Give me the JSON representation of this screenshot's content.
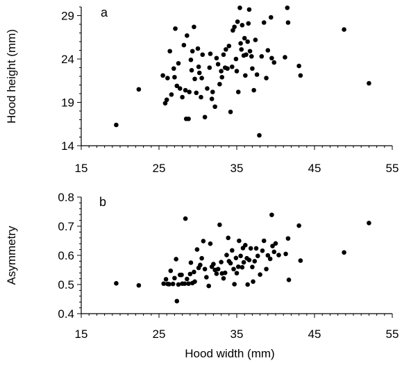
{
  "chart_data": [
    {
      "type": "scatter",
      "panel_label": "a",
      "ylabel": "Hood height (mm)",
      "xlabel": "",
      "xlim": [
        15,
        55
      ],
      "ylim": [
        14,
        30
      ],
      "xticks": [
        15,
        25,
        35,
        45,
        55
      ],
      "yticks": [
        14,
        19,
        24,
        29
      ],
      "marker_color": "#000000",
      "points": [
        [
          19.5,
          16.4
        ],
        [
          22.4,
          20.5
        ],
        [
          25.5,
          22.1
        ],
        [
          25.8,
          18.9
        ],
        [
          26.0,
          19.3
        ],
        [
          26.1,
          21.8
        ],
        [
          26.4,
          24.9
        ],
        [
          26.6,
          19.9
        ],
        [
          26.9,
          22.9
        ],
        [
          27.0,
          21.9
        ],
        [
          27.1,
          27.5
        ],
        [
          27.3,
          20.9
        ],
        [
          27.5,
          23.5
        ],
        [
          27.7,
          20.6
        ],
        [
          28.0,
          19.6
        ],
        [
          28.2,
          25.6
        ],
        [
          28.4,
          20.4
        ],
        [
          28.5,
          17.1
        ],
        [
          28.6,
          26.7
        ],
        [
          28.8,
          17.1
        ],
        [
          28.9,
          20.2
        ],
        [
          29.1,
          23.9
        ],
        [
          29.2,
          22.7
        ],
        [
          29.3,
          24.9
        ],
        [
          29.5,
          27.7
        ],
        [
          29.6,
          21.7
        ],
        [
          29.8,
          20.1
        ],
        [
          30.0,
          25.2
        ],
        [
          30.1,
          23.1
        ],
        [
          30.2,
          22.4
        ],
        [
          30.4,
          19.6
        ],
        [
          30.5,
          21.8
        ],
        [
          30.6,
          24.5
        ],
        [
          30.9,
          17.3
        ],
        [
          31.2,
          20.6
        ],
        [
          31.5,
          23.0
        ],
        [
          31.6,
          24.6
        ],
        [
          31.8,
          19.4
        ],
        [
          31.9,
          20.2
        ],
        [
          32.2,
          18.5
        ],
        [
          32.4,
          24.1
        ],
        [
          32.6,
          23.4
        ],
        [
          32.8,
          21.1
        ],
        [
          33.0,
          22.6
        ],
        [
          33.1,
          21.9
        ],
        [
          33.3,
          24.5
        ],
        [
          33.5,
          23.0
        ],
        [
          33.6,
          25.1
        ],
        [
          33.8,
          22.9
        ],
        [
          34.0,
          25.5
        ],
        [
          34.2,
          17.9
        ],
        [
          34.4,
          23.1
        ],
        [
          34.5,
          27.3
        ],
        [
          34.7,
          27.7
        ],
        [
          34.9,
          24.0
        ],
        [
          35.0,
          22.6
        ],
        [
          35.1,
          28.3
        ],
        [
          35.2,
          20.2
        ],
        [
          35.4,
          29.9
        ],
        [
          35.5,
          25.8
        ],
        [
          35.6,
          25.1
        ],
        [
          35.7,
          27.9
        ],
        [
          35.9,
          24.4
        ],
        [
          36.0,
          26.4
        ],
        [
          36.1,
          22.1
        ],
        [
          36.2,
          24.5
        ],
        [
          36.4,
          26.0
        ],
        [
          36.5,
          28.1
        ],
        [
          36.6,
          29.7
        ],
        [
          36.7,
          24.9
        ],
        [
          36.9,
          24.3
        ],
        [
          37.0,
          22.9
        ],
        [
          37.2,
          20.4
        ],
        [
          37.4,
          26.2
        ],
        [
          37.6,
          22.2
        ],
        [
          37.9,
          15.2
        ],
        [
          38.2,
          24.3
        ],
        [
          38.5,
          28.2
        ],
        [
          38.8,
          21.8
        ],
        [
          39.0,
          25.0
        ],
        [
          39.4,
          28.8
        ],
        [
          39.5,
          24.1
        ],
        [
          39.8,
          23.6
        ],
        [
          41.2,
          24.2
        ],
        [
          41.5,
          29.9
        ],
        [
          41.6,
          28.2
        ],
        [
          43.0,
          23.2
        ],
        [
          43.2,
          22.1
        ],
        [
          48.8,
          27.4
        ],
        [
          52.0,
          21.2
        ]
      ]
    },
    {
      "type": "scatter",
      "panel_label": "b",
      "ylabel": "Asymmetry",
      "xlabel": "Hood width (mm)",
      "xlim": [
        15,
        55
      ],
      "ylim": [
        0.4,
        0.8
      ],
      "xticks": [
        15,
        25,
        35,
        45,
        55
      ],
      "yticks": [
        0.4,
        0.5,
        0.6,
        0.7,
        0.8
      ],
      "ytick_labels": [
        "0.4",
        "0.5",
        "0.6",
        "0.7",
        "0.8"
      ],
      "marker_color": "#000000",
      "points": [
        [
          19.5,
          0.504
        ],
        [
          22.4,
          0.497
        ],
        [
          25.6,
          0.503
        ],
        [
          25.9,
          0.518
        ],
        [
          26.1,
          0.502
        ],
        [
          26.3,
          0.501
        ],
        [
          26.5,
          0.547
        ],
        [
          26.8,
          0.502
        ],
        [
          27.0,
          0.522
        ],
        [
          27.2,
          0.587
        ],
        [
          27.3,
          0.443
        ],
        [
          27.5,
          0.5
        ],
        [
          27.7,
          0.533
        ],
        [
          27.9,
          0.533
        ],
        [
          28.0,
          0.503
        ],
        [
          28.3,
          0.503
        ],
        [
          28.4,
          0.726
        ],
        [
          28.6,
          0.519
        ],
        [
          28.8,
          0.503
        ],
        [
          29.0,
          0.536
        ],
        [
          29.1,
          0.575
        ],
        [
          29.3,
          0.505
        ],
        [
          29.5,
          0.543
        ],
        [
          29.6,
          0.51
        ],
        [
          29.9,
          0.62
        ],
        [
          30.1,
          0.557
        ],
        [
          30.3,
          0.567
        ],
        [
          30.5,
          0.59
        ],
        [
          30.7,
          0.649
        ],
        [
          30.9,
          0.553
        ],
        [
          31.1,
          0.525
        ],
        [
          31.4,
          0.495
        ],
        [
          31.6,
          0.64
        ],
        [
          31.8,
          0.561
        ],
        [
          32.0,
          0.57
        ],
        [
          32.2,
          0.55
        ],
        [
          32.4,
          0.537
        ],
        [
          32.6,
          0.553
        ],
        [
          32.8,
          0.705
        ],
        [
          33.0,
          0.577
        ],
        [
          33.1,
          0.538
        ],
        [
          33.3,
          0.521
        ],
        [
          33.5,
          0.54
        ],
        [
          33.7,
          0.601
        ],
        [
          33.9,
          0.66
        ],
        [
          34.0,
          0.58
        ],
        [
          34.2,
          0.573
        ],
        [
          34.4,
          0.617
        ],
        [
          34.6,
          0.553
        ],
        [
          34.7,
          0.501
        ],
        [
          34.9,
          0.591
        ],
        [
          35.0,
          0.539
        ],
        [
          35.2,
          0.561
        ],
        [
          35.3,
          0.65
        ],
        [
          35.5,
          0.598
        ],
        [
          35.7,
          0.559
        ],
        [
          35.8,
          0.625
        ],
        [
          35.9,
          0.576
        ],
        [
          36.1,
          0.635
        ],
        [
          36.3,
          0.59
        ],
        [
          36.4,
          0.5
        ],
        [
          36.6,
          0.584
        ],
        [
          36.8,
          0.624
        ],
        [
          37.0,
          0.56
        ],
        [
          37.1,
          0.51
        ],
        [
          37.3,
          0.58
        ],
        [
          37.5,
          0.624
        ],
        [
          37.7,
          0.598
        ],
        [
          38.0,
          0.534
        ],
        [
          38.3,
          0.616
        ],
        [
          38.5,
          0.65
        ],
        [
          38.8,
          0.553
        ],
        [
          39.0,
          0.6
        ],
        [
          39.3,
          0.588
        ],
        [
          39.5,
          0.739
        ],
        [
          39.6,
          0.632
        ],
        [
          39.8,
          0.612
        ],
        [
          40.0,
          0.641
        ],
        [
          40.4,
          0.601
        ],
        [
          41.3,
          0.605
        ],
        [
          41.6,
          0.658
        ],
        [
          41.7,
          0.516
        ],
        [
          43.0,
          0.702
        ],
        [
          43.2,
          0.582
        ],
        [
          48.8,
          0.61
        ],
        [
          52.0,
          0.711
        ]
      ]
    }
  ]
}
